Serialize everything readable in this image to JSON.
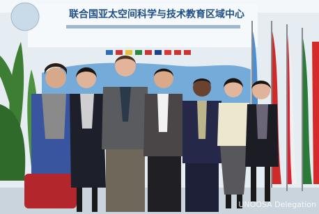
{
  "sign": {
    "title": "联合国亚太空间科学与技术教育区域中心"
  },
  "caption": "UNOOSA Delegation"
}
